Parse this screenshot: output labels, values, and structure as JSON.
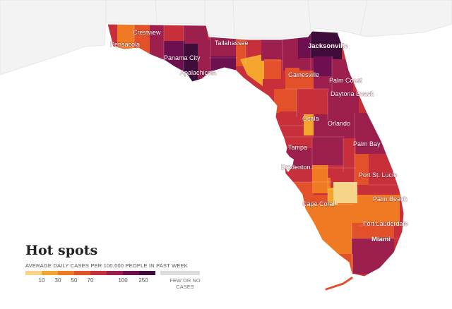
{
  "legend": {
    "title": "Hot spots",
    "subtitle": "AVERAGE DAILY CASES PER 100,000 PEOPLE IN PAST WEEK",
    "ticks": [
      "10",
      "30",
      "50",
      "70",
      "100",
      "250"
    ],
    "few_label_1": "FEW OR NO",
    "few_label_2": "CASES",
    "scale_colors": [
      "#f6d58b",
      "#f4a52e",
      "#f07a23",
      "#e2512a",
      "#c7303b",
      "#9c1f4e",
      "#6e1050",
      "#3e0d3a"
    ],
    "few_color": "#dcdcdc"
  },
  "cities": [
    "Crestview",
    "Pensacola",
    "Panama City",
    "Apalachicola",
    "Tallahassee",
    "Jacksonville",
    "Gainesville",
    "Palm Coast",
    "Daytona Beach",
    "Ocala",
    "Orlando",
    "Palm Bay",
    "Tampa",
    "Bradenton",
    "Port St. Lucie",
    "Cape Coral",
    "Palm Beach",
    "Fort Lauderdale",
    "Miami"
  ],
  "colors": {
    "outside_land": "#f3f3f3",
    "water": "#ffffff"
  }
}
